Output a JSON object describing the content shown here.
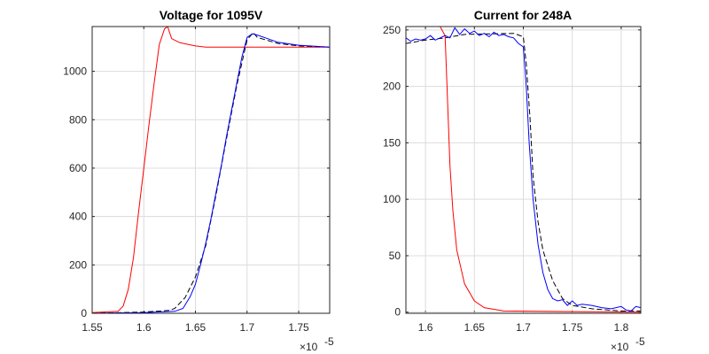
{
  "chart_data": [
    {
      "type": "line",
      "title": "Voltage for 1095V",
      "xlabel": "",
      "ylabel": "",
      "x_exponent_label": "×10",
      "x_exponent": "-5",
      "xlim": [
        1.55,
        1.78
      ],
      "ylim": [
        0,
        1185
      ],
      "xticks": [
        1.55,
        1.6,
        1.65,
        1.7,
        1.75
      ],
      "xtick_labels": [
        "1.55",
        "1.6",
        "1.65",
        "1.7",
        "1.75"
      ],
      "yticks": [
        0,
        200,
        400,
        600,
        800,
        1000
      ],
      "ytick_labels": [
        "0",
        "200",
        "400",
        "600",
        "800",
        "1000"
      ],
      "grid": true,
      "series": [
        {
          "name": "red",
          "color": "#ff0000",
          "dash": false,
          "x": [
            1.55,
            1.56,
            1.575,
            1.58,
            1.585,
            1.59,
            1.595,
            1.6,
            1.605,
            1.61,
            1.615,
            1.62,
            1.623,
            1.627,
            1.635,
            1.65,
            1.66,
            1.78
          ],
          "y": [
            3,
            5,
            8,
            30,
            100,
            230,
            420,
            600,
            780,
            950,
            1110,
            1175,
            1185,
            1135,
            1118,
            1105,
            1100,
            1100
          ]
        },
        {
          "name": "black-dashed",
          "color": "#000000",
          "dash": true,
          "x": [
            1.55,
            1.6,
            1.625,
            1.63,
            1.64,
            1.65,
            1.66,
            1.67,
            1.68,
            1.69,
            1.7,
            1.706,
            1.71,
            1.73,
            1.75,
            1.78
          ],
          "y": [
            0,
            5,
            12,
            20,
            65,
            150,
            280,
            490,
            720,
            940,
            1130,
            1160,
            1140,
            1115,
            1105,
            1100
          ]
        },
        {
          "name": "blue",
          "color": "#0000ff",
          "dash": false,
          "x": [
            1.55,
            1.6,
            1.63,
            1.638,
            1.645,
            1.65,
            1.655,
            1.66,
            1.665,
            1.67,
            1.675,
            1.68,
            1.685,
            1.69,
            1.695,
            1.7,
            1.705,
            1.71,
            1.72,
            1.73,
            1.75,
            1.78
          ],
          "y": [
            0,
            3,
            8,
            20,
            70,
            120,
            200,
            290,
            390,
            500,
            610,
            730,
            840,
            950,
            1060,
            1140,
            1155,
            1150,
            1135,
            1120,
            1108,
            1100
          ]
        }
      ]
    },
    {
      "type": "line",
      "title": "Current for 248A",
      "xlabel": "",
      "ylabel": "",
      "x_exponent_label": "×10",
      "x_exponent": "-5",
      "xlim": [
        1.58,
        1.82
      ],
      "ylim": [
        -1,
        253
      ],
      "xticks": [
        1.6,
        1.65,
        1.7,
        1.75,
        1.8
      ],
      "xtick_labels": [
        "1.6",
        "1.65",
        "1.7",
        "1.75",
        "1.8"
      ],
      "yticks": [
        0,
        50,
        100,
        150,
        200,
        250
      ],
      "ytick_labels": [
        "0",
        "50",
        "100",
        "150",
        "200",
        "250"
      ],
      "grid": true,
      "series": [
        {
          "name": "red",
          "color": "#ff0000",
          "dash": false,
          "x": [
            1.58,
            1.615,
            1.62,
            1.622,
            1.625,
            1.628,
            1.632,
            1.64,
            1.65,
            1.66,
            1.68,
            1.82
          ],
          "y": [
            253,
            253,
            245,
            200,
            130,
            90,
            55,
            25,
            10,
            4,
            1,
            0
          ]
        },
        {
          "name": "black-dashed",
          "color": "#000000",
          "dash": true,
          "x": [
            1.58,
            1.6,
            1.62,
            1.64,
            1.69,
            1.7,
            1.703,
            1.707,
            1.71,
            1.715,
            1.72,
            1.73,
            1.74,
            1.75,
            1.77,
            1.8,
            1.82
          ],
          "y": [
            238,
            241,
            243,
            246,
            247,
            244,
            220,
            170,
            120,
            80,
            55,
            28,
            12,
            6,
            3,
            1,
            1
          ]
        },
        {
          "name": "blue",
          "color": "#0000ff",
          "dash": false,
          "x": [
            1.58,
            1.585,
            1.59,
            1.595,
            1.6,
            1.605,
            1.61,
            1.615,
            1.62,
            1.625,
            1.63,
            1.635,
            1.64,
            1.645,
            1.65,
            1.655,
            1.66,
            1.665,
            1.67,
            1.675,
            1.68,
            1.685,
            1.69,
            1.695,
            1.7,
            1.703,
            1.706,
            1.71,
            1.715,
            1.72,
            1.725,
            1.73,
            1.735,
            1.74,
            1.745,
            1.75,
            1.755,
            1.76,
            1.77,
            1.78,
            1.79,
            1.8,
            1.805,
            1.81,
            1.815,
            1.82
          ],
          "y": [
            243,
            240,
            242,
            241,
            242,
            245,
            241,
            243,
            245,
            243,
            252,
            246,
            251,
            247,
            249,
            245,
            247,
            244,
            248,
            245,
            246,
            244,
            243,
            238,
            235,
            200,
            150,
            100,
            60,
            35,
            20,
            12,
            10,
            11,
            6,
            10,
            6,
            7,
            6,
            4,
            3,
            5,
            2,
            1,
            5,
            4
          ]
        }
      ]
    }
  ]
}
